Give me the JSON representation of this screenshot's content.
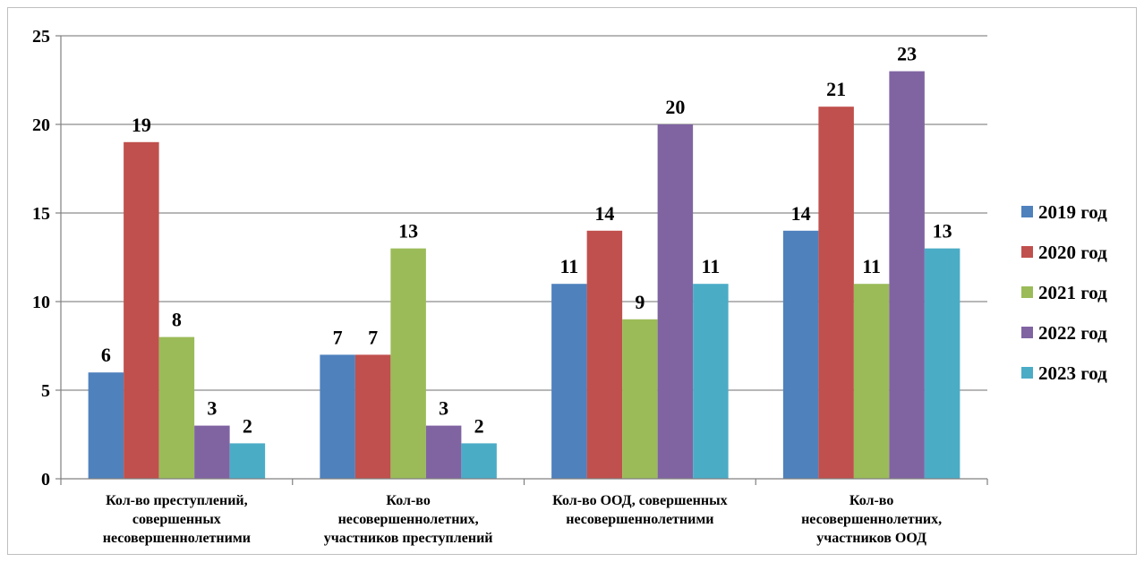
{
  "chart_data": {
    "type": "bar",
    "title": "",
    "xlabel": "",
    "ylabel": "",
    "ylim": [
      0,
      25
    ],
    "yticks": [
      0,
      5,
      10,
      15,
      20,
      25
    ],
    "grid": true,
    "legend_position": "right",
    "categories": [
      [
        "Кол-во преступлений,",
        "совершенных",
        "несовершеннолетними"
      ],
      [
        "Кол-во",
        "несовершеннолетних,",
        "участников преступлений"
      ],
      [
        "Кол-во ООД, совершенных",
        "несовершеннолетними"
      ],
      [
        "Кол-во",
        "несовершеннолетних,",
        "участников ООД"
      ]
    ],
    "series": [
      {
        "name": "2019 год",
        "color": "#4f81bd",
        "values": [
          6,
          7,
          11,
          14
        ]
      },
      {
        "name": "2020 год",
        "color": "#c0504d",
        "values": [
          19,
          7,
          14,
          21
        ]
      },
      {
        "name": "2021 год",
        "color": "#9bbb59",
        "values": [
          8,
          13,
          9,
          11
        ]
      },
      {
        "name": "2022 год",
        "color": "#8064a2",
        "values": [
          3,
          3,
          20,
          23
        ]
      },
      {
        "name": "2023 год",
        "color": "#4bacc6",
        "values": [
          2,
          2,
          11,
          13
        ]
      }
    ]
  }
}
